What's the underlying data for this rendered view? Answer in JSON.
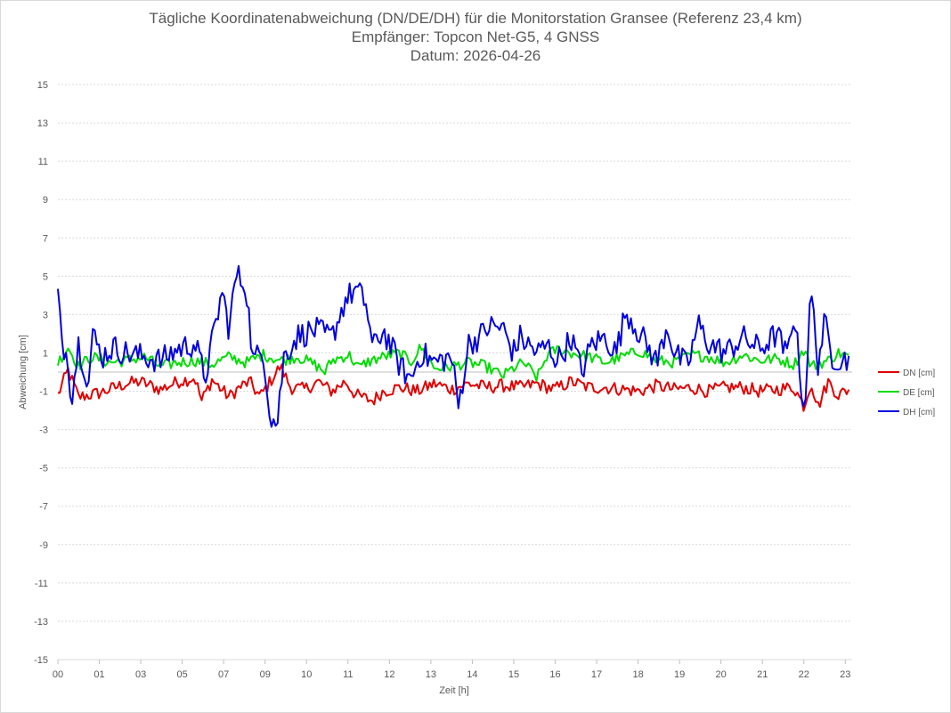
{
  "chart_data": {
    "type": "line",
    "title": "Tägliche Koordinatenabweichung (DN/DE/DH) für die Monitorstation Gransee (Referenz 23,4 km)",
    "subtitle": "Empfänger: Topcon Net-G5, 4 GNSS",
    "date_line": "Datum: 2026-04-26",
    "xlabel": "Zeit [h]",
    "ylabel": "Abweichung [cm]",
    "xlim": [
      0,
      23.2
    ],
    "ylim": [
      -15,
      15
    ],
    "x_ticks": [
      "00",
      "01",
      "03",
      "05",
      "07",
      "09",
      "10",
      "11",
      "12",
      "13",
      "14",
      "15",
      "16",
      "17",
      "18",
      "19",
      "20",
      "21",
      "22",
      "23"
    ],
    "x_tick_positions": [
      0,
      1,
      2,
      3,
      4,
      5,
      6,
      7,
      8,
      9,
      10,
      11,
      12,
      13,
      14,
      15,
      16,
      17,
      18,
      19
    ],
    "y_ticks": [
      15,
      13,
      11,
      9,
      7,
      5,
      3,
      1,
      -1,
      -3,
      -5,
      -7,
      -9,
      -11,
      -13,
      -15
    ],
    "grid": true,
    "legend_position": "right",
    "series": [
      {
        "name": "DN [cm]",
        "color": "#e00000",
        "anchors": [
          [
            0.0,
            -1.2
          ],
          [
            0.3,
            0.1
          ],
          [
            0.6,
            -1.3
          ],
          [
            1.2,
            -1.1
          ],
          [
            2.0,
            -0.6
          ],
          [
            2.4,
            -0.5
          ],
          [
            3.0,
            -0.9
          ],
          [
            3.5,
            -0.5
          ],
          [
            4.0,
            -0.3
          ],
          [
            4.2,
            -1.5
          ],
          [
            4.5,
            -0.4
          ],
          [
            5.0,
            -1.3
          ],
          [
            5.3,
            -0.8
          ],
          [
            5.6,
            -0.5
          ],
          [
            5.9,
            -1.3
          ],
          [
            6.2,
            -0.5
          ],
          [
            6.5,
            0.3
          ],
          [
            6.8,
            -0.8
          ],
          [
            7.2,
            -0.9
          ],
          [
            7.6,
            -0.5
          ],
          [
            8.0,
            -1.0
          ],
          [
            8.4,
            -0.5
          ],
          [
            8.7,
            -1.2
          ],
          [
            9.2,
            -1.5
          ],
          [
            9.5,
            -1.0
          ],
          [
            10.0,
            -0.8
          ],
          [
            10.5,
            -1.0
          ],
          [
            11.0,
            -0.6
          ],
          [
            11.5,
            -0.9
          ],
          [
            12.0,
            -0.6
          ],
          [
            12.5,
            -0.8
          ],
          [
            13.0,
            -0.7
          ],
          [
            13.5,
            -0.8
          ],
          [
            14.0,
            -0.6
          ],
          [
            14.5,
            -0.9
          ],
          [
            15.0,
            -0.5
          ],
          [
            15.5,
            -0.8
          ],
          [
            16.0,
            -0.8
          ],
          [
            16.5,
            -0.9
          ],
          [
            17.0,
            -1.0
          ],
          [
            17.5,
            -0.7
          ],
          [
            18.0,
            -0.9
          ],
          [
            18.5,
            -0.8
          ],
          [
            19.0,
            -1.0
          ],
          [
            19.5,
            -0.8
          ],
          [
            20.0,
            -0.8
          ],
          [
            20.5,
            -1.0
          ],
          [
            21.0,
            -0.9
          ],
          [
            21.5,
            -0.8
          ],
          [
            21.8,
            -1.8
          ],
          [
            22.0,
            -0.5
          ],
          [
            22.2,
            -1.8
          ],
          [
            22.5,
            -0.5
          ],
          [
            22.8,
            -1.2
          ],
          [
            23.1,
            -0.9
          ]
        ]
      },
      {
        "name": "DE [cm]",
        "color": "#00dd00",
        "anchors": [
          [
            0.0,
            0.5
          ],
          [
            0.3,
            1.3
          ],
          [
            0.6,
            0.3
          ],
          [
            1.0,
            0.8
          ],
          [
            1.5,
            0.5
          ],
          [
            2.0,
            0.6
          ],
          [
            2.5,
            0.8
          ],
          [
            3.0,
            0.3
          ],
          [
            3.5,
            0.5
          ],
          [
            4.0,
            0.6
          ],
          [
            4.5,
            0.4
          ],
          [
            5.0,
            0.8
          ],
          [
            5.5,
            0.5
          ],
          [
            6.0,
            0.9
          ],
          [
            6.5,
            0.6
          ],
          [
            7.0,
            0.8
          ],
          [
            7.5,
            0.4
          ],
          [
            7.8,
            0.0
          ],
          [
            8.0,
            0.6
          ],
          [
            8.5,
            0.9
          ],
          [
            8.8,
            0.2
          ],
          [
            9.0,
            0.5
          ],
          [
            9.5,
            0.8
          ],
          [
            10.0,
            1.0
          ],
          [
            10.3,
            0.5
          ],
          [
            10.6,
            1.3
          ],
          [
            11.0,
            0.2
          ],
          [
            11.5,
            0.3
          ],
          [
            12.0,
            0.5
          ],
          [
            12.5,
            0.3
          ],
          [
            13.0,
            -0.2
          ],
          [
            13.3,
            0.2
          ],
          [
            13.6,
            0.5
          ],
          [
            14.0,
            -0.3
          ],
          [
            14.3,
            0.9
          ],
          [
            14.6,
            1.2
          ],
          [
            15.0,
            1.0
          ],
          [
            15.5,
            0.8
          ],
          [
            16.0,
            0.5
          ],
          [
            16.5,
            0.8
          ],
          [
            17.0,
            1.1
          ],
          [
            17.5,
            0.6
          ],
          [
            18.0,
            0.5
          ],
          [
            18.5,
            0.9
          ],
          [
            19.0,
            0.8
          ],
          [
            19.5,
            0.5
          ],
          [
            20.0,
            0.9
          ],
          [
            20.5,
            0.6
          ],
          [
            21.0,
            0.7
          ],
          [
            21.5,
            0.4
          ],
          [
            21.8,
            1.2
          ],
          [
            22.0,
            0.3
          ],
          [
            22.5,
            0.6
          ],
          [
            22.8,
            1.0
          ],
          [
            23.1,
            0.8
          ]
        ]
      },
      {
        "name": "DH [cm]",
        "color": "#0000dd",
        "anchors": [
          [
            0.0,
            4.0
          ],
          [
            0.1,
            1.8
          ],
          [
            0.3,
            0.6
          ],
          [
            0.4,
            -1.4
          ],
          [
            0.6,
            1.5
          ],
          [
            0.9,
            -0.6
          ],
          [
            1.0,
            2.0
          ],
          [
            1.3,
            0.8
          ],
          [
            1.6,
            1.3
          ],
          [
            2.0,
            1.0
          ],
          [
            2.5,
            0.8
          ],
          [
            3.0,
            0.6
          ],
          [
            3.5,
            1.2
          ],
          [
            4.0,
            1.5
          ],
          [
            4.3,
            -0.3
          ],
          [
            4.5,
            1.5
          ],
          [
            4.8,
            4.2
          ],
          [
            5.0,
            2.2
          ],
          [
            5.2,
            5.1
          ],
          [
            5.5,
            4.5
          ],
          [
            5.7,
            0.6
          ],
          [
            6.0,
            1.1
          ],
          [
            6.2,
            -2.2
          ],
          [
            6.4,
            -2.8
          ],
          [
            6.6,
            0.8
          ],
          [
            7.0,
            1.9
          ],
          [
            7.2,
            2.0
          ],
          [
            7.5,
            2.2
          ],
          [
            8.0,
            1.8
          ],
          [
            8.4,
            3.8
          ],
          [
            8.7,
            4.3
          ],
          [
            9.0,
            3.6
          ],
          [
            9.2,
            1.2
          ],
          [
            9.5,
            2.2
          ],
          [
            10.0,
            0.3
          ],
          [
            10.3,
            -0.4
          ],
          [
            10.6,
            1.0
          ],
          [
            11.0,
            0.5
          ],
          [
            11.5,
            0.8
          ],
          [
            11.7,
            -1.8
          ],
          [
            12.0,
            1.5
          ],
          [
            12.3,
            1.8
          ],
          [
            12.6,
            2.4
          ],
          [
            13.0,
            2.3
          ],
          [
            13.3,
            1.0
          ],
          [
            13.5,
            1.8
          ],
          [
            14.0,
            1.0
          ],
          [
            14.3,
            1.4
          ],
          [
            14.6,
            0.6
          ],
          [
            15.0,
            1.8
          ],
          [
            15.3,
            0.0
          ],
          [
            15.6,
            1.5
          ],
          [
            16.0,
            1.8
          ],
          [
            16.3,
            1.0
          ],
          [
            16.6,
            3.2
          ],
          [
            17.0,
            2.0
          ],
          [
            17.5,
            0.5
          ],
          [
            17.8,
            2.5
          ],
          [
            18.0,
            1.0
          ],
          [
            18.4,
            0.3
          ],
          [
            18.7,
            2.5
          ],
          [
            19.0,
            1.5
          ],
          [
            19.5,
            1.0
          ],
          [
            20.0,
            1.8
          ],
          [
            20.5,
            1.2
          ],
          [
            21.0,
            2.0
          ],
          [
            21.3,
            0.8
          ],
          [
            21.5,
            3.2
          ],
          [
            21.8,
            -2.2
          ],
          [
            22.0,
            4.3
          ],
          [
            22.2,
            0.5
          ],
          [
            22.4,
            2.6
          ],
          [
            22.6,
            0.8
          ],
          [
            23.1,
            0.6
          ]
        ]
      }
    ]
  }
}
